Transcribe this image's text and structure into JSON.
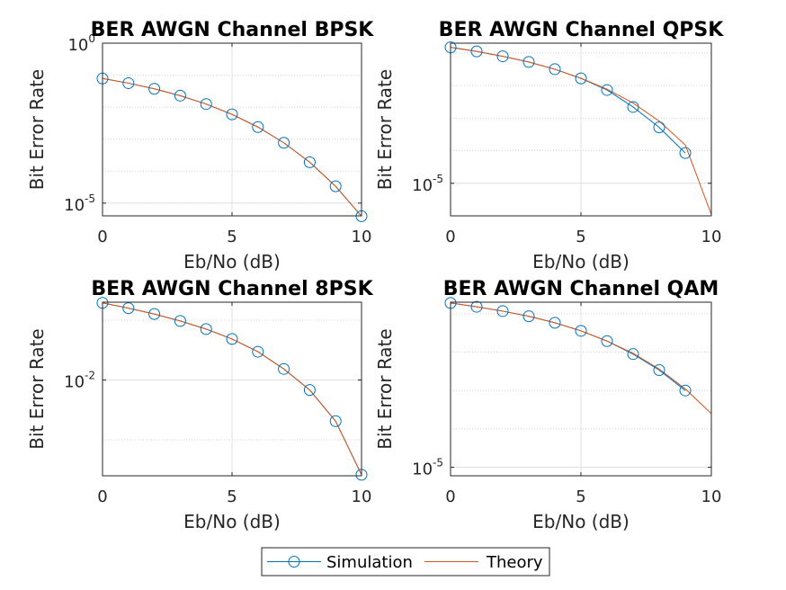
{
  "legend": {
    "entries": [
      {
        "label": "Simulation",
        "color": "#0072BD",
        "marker": "circle"
      },
      {
        "label": "Theory",
        "color": "#D95319",
        "marker": "none"
      }
    ],
    "placement": "bottom-center"
  },
  "chart_data": [
    {
      "type": "line",
      "title": "BER AWGN Channel BPSK",
      "xlabel": "Eb/No (dB)",
      "ylabel": "Bit Error Rate",
      "yscale": "log",
      "xlim": [
        0,
        10
      ],
      "ylim": [
        4e-06,
        1
      ],
      "xticks": [
        0,
        5,
        10
      ],
      "yticks": [
        {
          "value": 1,
          "base": "10",
          "exp": "0"
        },
        {
          "value": 1e-05,
          "base": "10",
          "exp": "-5"
        }
      ],
      "grid": true,
      "x": [
        0,
        1,
        2,
        3,
        4,
        5,
        6,
        7,
        8,
        9,
        10
      ],
      "series": [
        {
          "name": "Simulation",
          "values": [
            0.0786,
            0.0563,
            0.0375,
            0.0229,
            0.0125,
            0.00595,
            0.00239,
            0.00077,
            0.00019,
            3.36e-05,
            3.9e-06
          ]
        },
        {
          "name": "Theory",
          "values": [
            0.0786,
            0.0563,
            0.0375,
            0.0229,
            0.0125,
            0.00595,
            0.00239,
            0.00077,
            0.000191,
            3.36e-05,
            3.9e-06
          ]
        }
      ]
    },
    {
      "type": "line",
      "title": "BER AWGN Channel QPSK",
      "xlabel": "Eb/No (dB)",
      "ylabel": "Bit Error Rate",
      "yscale": "log",
      "xlim": [
        0,
        10
      ],
      "ylim": [
        1e-06,
        0.2
      ],
      "xticks": [
        0,
        5,
        10
      ],
      "yticks": [
        {
          "value": 1e-05,
          "base": "10",
          "exp": "-5"
        }
      ],
      "grid": true,
      "x": [
        0,
        1,
        2,
        3,
        4,
        5,
        6,
        7,
        8,
        9,
        10
      ],
      "series": [
        {
          "name": "Simulation",
          "x": [
            0,
            1,
            2,
            3,
            4,
            5,
            6,
            7,
            8,
            9
          ],
          "values": [
            0.1493,
            0.1122,
            0.0792,
            0.0529,
            0.0318,
            0.0166,
            0.0073,
            0.0022,
            0.00052,
            8.5e-05
          ]
        },
        {
          "name": "Theory",
          "values": [
            0.1493,
            0.112,
            0.0791,
            0.0525,
            0.0315,
            0.0168,
            0.0077,
            0.0029,
            0.00081,
            0.00015,
            1.1e-06
          ]
        }
      ]
    },
    {
      "type": "line",
      "title": "BER AWGN Channel 8PSK",
      "xlabel": "Eb/No (dB)",
      "ylabel": "Bit Error Rate",
      "yscale": "log",
      "xlim": [
        0,
        10
      ],
      "ylim": [
        0.00025,
        0.2
      ],
      "xticks": [
        0,
        5,
        10
      ],
      "yticks": [
        {
          "value": 0.01,
          "base": "10",
          "exp": "-2"
        }
      ],
      "grid": true,
      "x": [
        0,
        1,
        2,
        3,
        4,
        5,
        6,
        7,
        8,
        9,
        10
      ],
      "series": [
        {
          "name": "Simulation",
          "values": [
            0.195,
            0.159,
            0.127,
            0.097,
            0.071,
            0.0485,
            0.0297,
            0.0153,
            0.0068,
            0.00205,
            0.00026
          ]
        },
        {
          "name": "Theory",
          "values": [
            0.195,
            0.159,
            0.127,
            0.097,
            0.071,
            0.0485,
            0.0297,
            0.0153,
            0.0068,
            0.00205,
            0.00026
          ]
        }
      ]
    },
    {
      "type": "line",
      "title": "BER AWGN Channel QAM",
      "xlabel": "Eb/No (dB)",
      "ylabel": "Bit Error Rate",
      "yscale": "log",
      "xlim": [
        0,
        10
      ],
      "ylim": [
        6e-06,
        0.2
      ],
      "xticks": [
        0,
        5,
        10
      ],
      "yticks": [
        {
          "value": 1e-05,
          "base": "10",
          "exp": "-5"
        }
      ],
      "grid": true,
      "x": [
        0,
        1,
        2,
        3,
        4,
        5,
        6,
        7,
        8,
        9,
        10
      ],
      "series": [
        {
          "name": "Simulation",
          "x": [
            0,
            1,
            2,
            3,
            4,
            5,
            6,
            7,
            8,
            9
          ],
          "values": [
            0.191,
            0.152,
            0.117,
            0.0859,
            0.0582,
            0.0359,
            0.0194,
            0.0089,
            0.0034,
            0.001
          ]
        },
        {
          "name": "Theory",
          "values": [
            0.191,
            0.152,
            0.117,
            0.0859,
            0.0582,
            0.0359,
            0.0194,
            0.0093,
            0.0036,
            0.0011,
            0.00025
          ]
        }
      ]
    }
  ]
}
